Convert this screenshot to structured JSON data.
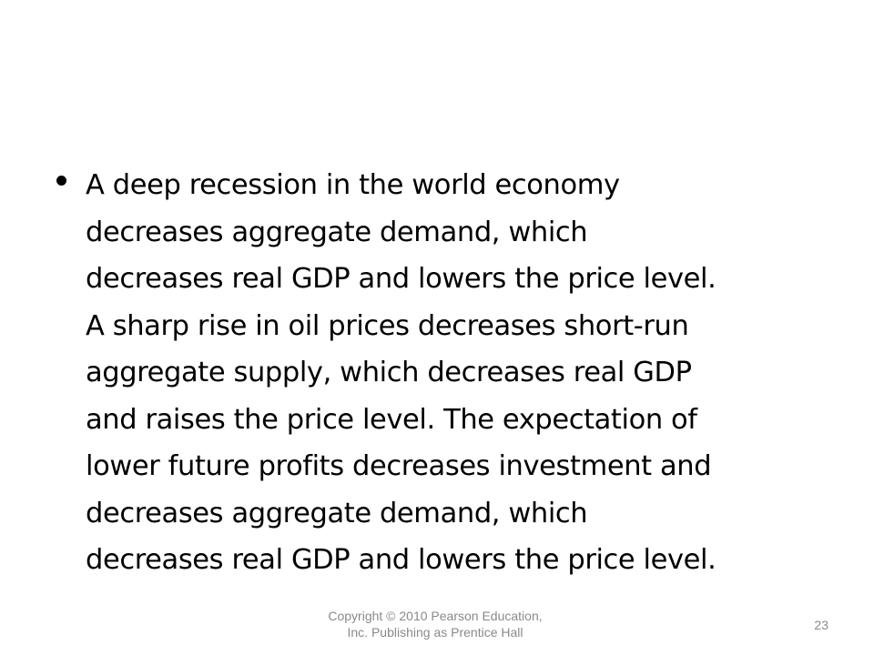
{
  "slide": {
    "bullets": [
      {
        "lines": [
          "A deep recession in the world economy",
          "decreases aggregate demand, which",
          "decreases real GDP and lowers the price level.",
          "A sharp rise in oil prices decreases short-run",
          "aggregate supply, which decreases real GDP",
          "and raises the price level. The expectation of",
          "lower future profits decreases investment and",
          "decreases aggregate demand, which",
          "decreases real GDP and lowers the price level."
        ]
      }
    ]
  },
  "footer": {
    "copyright_lines": [
      "Copyright © 2010 Pearson Education,",
      "Inc. Publishing as Prentice Hall"
    ],
    "page_number": "23"
  },
  "colors": {
    "background": "#ffffff",
    "body_text": "#000000",
    "footer_text": "#8a8a8a"
  }
}
